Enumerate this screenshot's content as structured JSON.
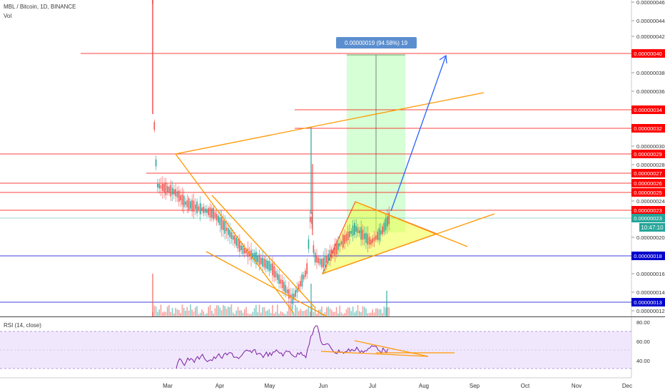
{
  "header": {
    "symbol_line": "MBL / Bitcoin, 1D, BINANCE",
    "volume_label": "Vol"
  },
  "rsi_pane": {
    "label": "RSI (14, close)",
    "ticks": [
      "80.00",
      "60.00",
      "40.00"
    ]
  },
  "price_ticks": [
    "0.00000046",
    "0.00000044",
    "0.00000042",
    "0.00000038",
    "0.00000036",
    "0.00000030",
    "0.00000028",
    "0.00000024",
    "0.00000020",
    "0.00000016",
    "0.00000014",
    "0.00000012"
  ],
  "price_levels": [
    {
      "label": "0.00000040",
      "style": "red"
    },
    {
      "label": "0.00000034",
      "style": "red"
    },
    {
      "label": "0.00000032",
      "style": "red"
    },
    {
      "label": "0.00000029",
      "style": "red"
    },
    {
      "label": "0.00000027",
      "style": "red"
    },
    {
      "label": "0.00000026",
      "style": "red"
    },
    {
      "label": "0.00000025",
      "style": "red"
    },
    {
      "label": "0.00000023",
      "style": "red"
    },
    {
      "label": "0.00000023",
      "style": "green"
    },
    {
      "label": "0.00000018",
      "style": "blue"
    },
    {
      "label": "0.00000013",
      "style": "blue"
    }
  ],
  "countdown": "10:47:10",
  "projection_label": "0.00000019 (94.58%) 19",
  "colors": {
    "red": "#ff0000",
    "blue": "#0000cc",
    "green": "#26a69a",
    "orange": "#ff9800",
    "up": "#26a69a",
    "down": "#ef5350"
  },
  "chart_data": {
    "type": "candlestick",
    "x_ticks": [
      "Mar",
      "Apr",
      "May",
      "Jun",
      "Jul",
      "Aug",
      "Sep",
      "Oct",
      "Nov",
      "Dec"
    ],
    "y_unit": "BTC",
    "horizontal_levels": [
      4e-07,
      3.4e-07,
      3.2e-07,
      2.9e-07,
      2.7e-07,
      2.6e-07,
      2.5e-07,
      2.3e-07,
      1.8e-07,
      1.3e-07
    ],
    "projection": {
      "entry": 2.1e-07,
      "target": 4e-07,
      "change": "0.00000019 (94.58%)",
      "bars": 19
    },
    "rsi_range": [
      20,
      80
    ],
    "rsi_guides": [
      70,
      30
    ]
  }
}
